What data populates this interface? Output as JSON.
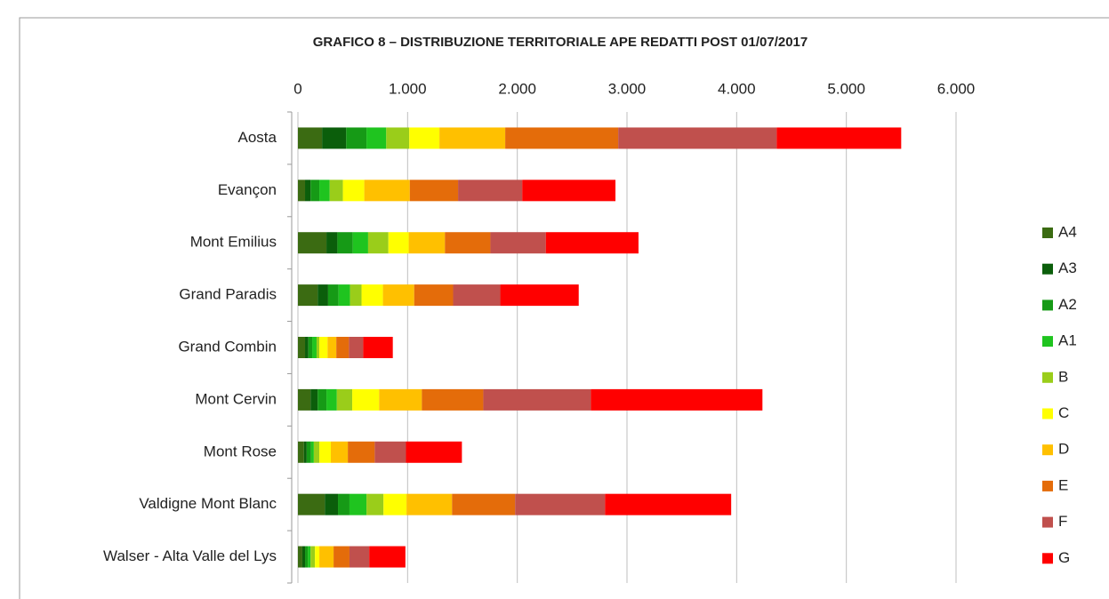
{
  "chart_data": {
    "type": "bar",
    "horizontal": true,
    "stacked": true,
    "title": "GRAFICO 8 – DISTRIBUZIONE TERRITORIALE APE REDATTI POST 01/07/2017",
    "categories": [
      "Aosta",
      "Evançon",
      "Mont Emilius",
      "Grand Paradis",
      "Grand Combin",
      "Mont Cervin",
      "Mont Rose",
      "Valdigne Mont Blanc",
      "Walser - Alta Valle del Lys"
    ],
    "series": [
      {
        "name": "A4",
        "color": "#3b6b12",
        "values": [
          220,
          65,
          260,
          180,
          65,
          115,
          55,
          245,
          40
        ]
      },
      {
        "name": "A3",
        "color": "#0b5e0b",
        "values": [
          220,
          50,
          100,
          95,
          30,
          65,
          25,
          120,
          25
        ]
      },
      {
        "name": "A2",
        "color": "#169a16",
        "values": [
          185,
          80,
          140,
          95,
          35,
          80,
          40,
          105,
          25
        ]
      },
      {
        "name": "A1",
        "color": "#1fc41f",
        "values": [
          180,
          95,
          140,
          105,
          40,
          95,
          25,
          155,
          25
        ]
      },
      {
        "name": "B",
        "color": "#9acd1a",
        "values": [
          210,
          120,
          185,
          105,
          25,
          140,
          50,
          155,
          40
        ]
      },
      {
        "name": "C",
        "color": "#ffff00",
        "values": [
          275,
          195,
          185,
          195,
          75,
          245,
          105,
          210,
          40
        ]
      },
      {
        "name": "D",
        "color": "#ffc000",
        "values": [
          600,
          415,
          330,
          285,
          80,
          390,
          155,
          415,
          130
        ]
      },
      {
        "name": "E",
        "color": "#e46c0a",
        "values": [
          1030,
          440,
          415,
          355,
          115,
          560,
          245,
          575,
          145
        ]
      },
      {
        "name": "F",
        "color": "#c0504d",
        "values": [
          1445,
          585,
          505,
          430,
          130,
          980,
          285,
          820,
          180
        ]
      },
      {
        "name": "G",
        "color": "#ff0000",
        "values": [
          1135,
          850,
          845,
          715,
          270,
          1565,
          510,
          1150,
          330
        ]
      }
    ],
    "xlim": [
      0,
      6000
    ],
    "xticks": [
      0,
      {
        "value": 1000,
        "label": "1.000"
      },
      {
        "value": 2000,
        "label": "2.000"
      },
      {
        "value": 3000,
        "label": "3.000"
      },
      {
        "value": 4000,
        "label": "4.000"
      },
      {
        "value": 5000,
        "label": "5.000"
      },
      {
        "value": 6000,
        "label": "6.000"
      }
    ],
    "grid": true,
    "legend": "right"
  }
}
